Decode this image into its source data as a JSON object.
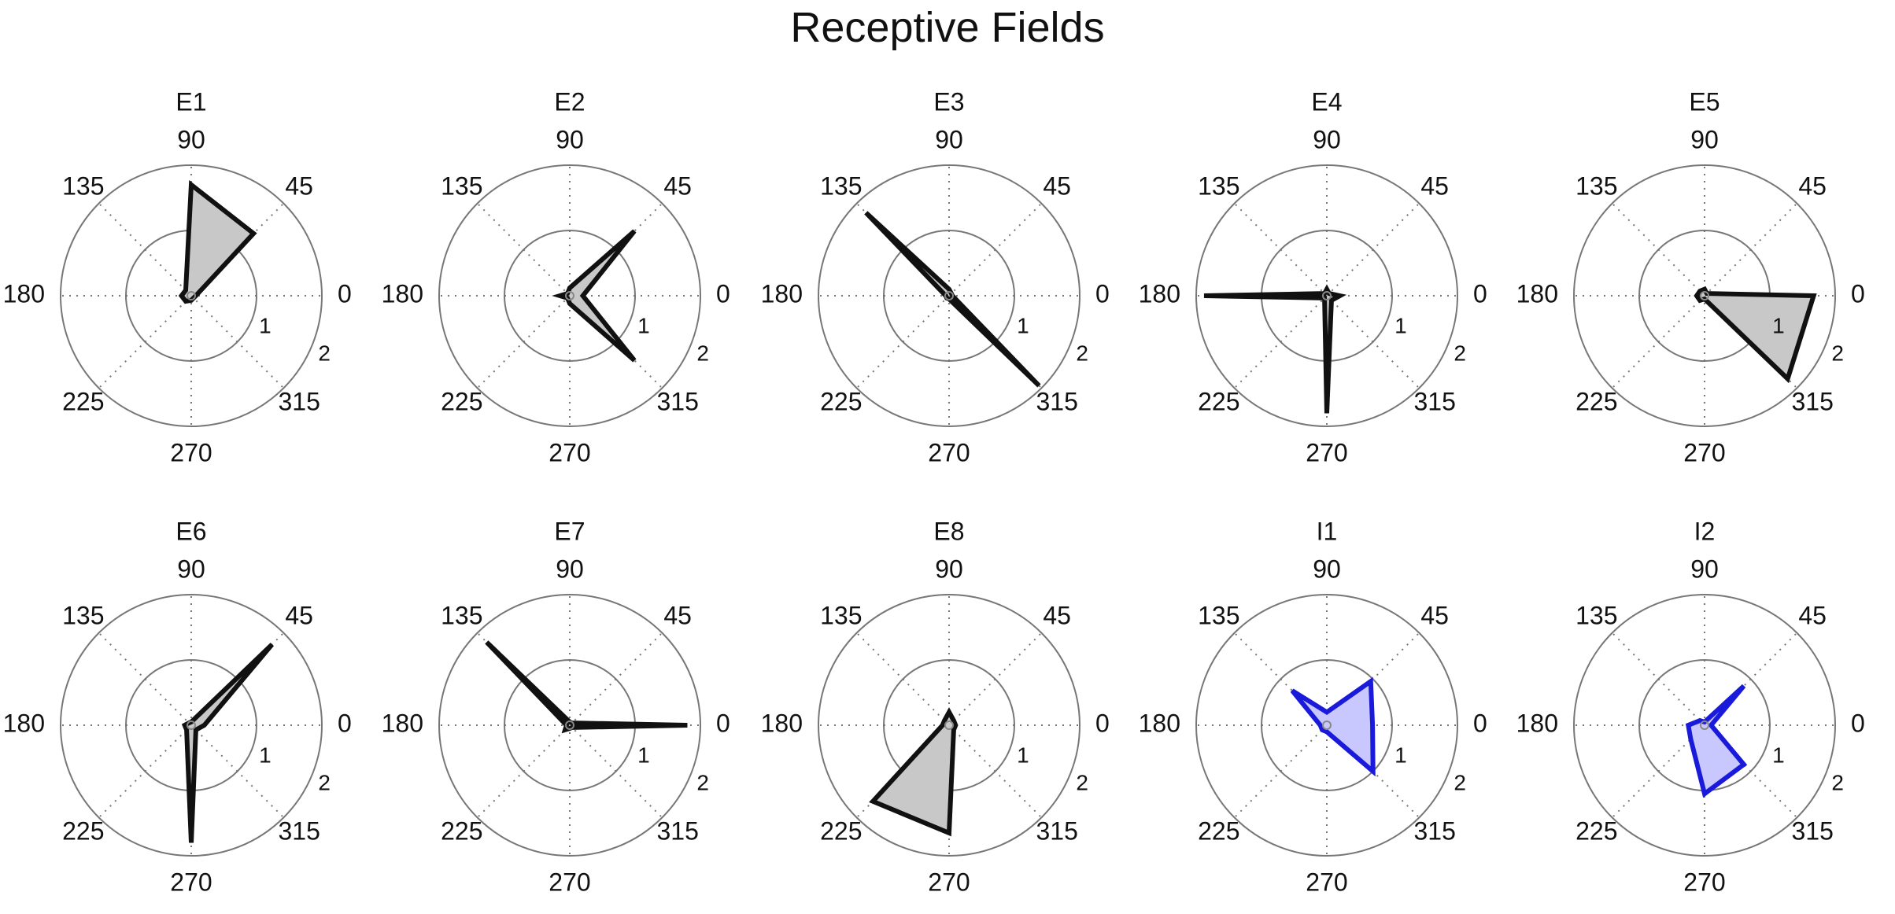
{
  "title": "Receptive Fields",
  "chart_data": {
    "type": "polar",
    "angle_ticks": [
      "0",
      "45",
      "90",
      "135",
      "180",
      "225",
      "270",
      "315"
    ],
    "angles_deg": [
      0,
      45,
      90,
      135,
      180,
      225,
      270,
      315
    ],
    "rings": [
      1,
      2
    ],
    "ring_labels": [
      "1",
      "2"
    ],
    "rlim": [
      0,
      2
    ],
    "grid": true,
    "colors": {
      "excitatory_line": "#111111",
      "excitatory_fill": "#c8c8c8",
      "inhibitory_line": "#1a1adb",
      "inhibitory_fill": "#c8c8ff",
      "grid": "#777777"
    },
    "panels": [
      {
        "name": "E1",
        "kind": "excitatory",
        "values": [
          0.07,
          1.35,
          1.7,
          0.12,
          0.15,
          0.12,
          0.07,
          0.05
        ]
      },
      {
        "name": "E2",
        "kind": "excitatory",
        "values": [
          0.2,
          1.4,
          0.12,
          0.05,
          0.15,
          0.05,
          0.12,
          1.4
        ]
      },
      {
        "name": "E3",
        "kind": "excitatory",
        "values": [
          0.05,
          0.05,
          0.1,
          1.8,
          0.05,
          0.05,
          0.05,
          1.95
        ]
      },
      {
        "name": "E4",
        "kind": "excitatory",
        "values": [
          0.2,
          0.05,
          0.1,
          0.05,
          1.88,
          0.05,
          1.8,
          0.1
        ]
      },
      {
        "name": "E5",
        "kind": "excitatory",
        "values": [
          1.67,
          0.05,
          0.1,
          0.1,
          0.12,
          0.1,
          0.05,
          1.8
        ]
      },
      {
        "name": "E6",
        "kind": "excitatory",
        "values": [
          0.2,
          1.75,
          0.05,
          0.05,
          0.1,
          0.1,
          1.8,
          0.1
        ]
      },
      {
        "name": "E7",
        "kind": "excitatory",
        "values": [
          1.8,
          0.05,
          0.05,
          1.8,
          0.05,
          0.1,
          0.05,
          0.05
        ]
      },
      {
        "name": "E8",
        "kind": "excitatory",
        "values": [
          0.1,
          0.1,
          0.2,
          0.1,
          0.1,
          1.65,
          1.65,
          0.1
        ]
      },
      {
        "name": "I1",
        "kind": "inhibitory",
        "values": [
          0.7,
          0.95,
          0.2,
          0.75,
          0.1,
          0.1,
          0.1,
          1.0
        ]
      },
      {
        "name": "I2",
        "kind": "inhibitory",
        "values": [
          0.1,
          0.85,
          0.05,
          0.1,
          0.25,
          0.3,
          1.05,
          0.85
        ]
      }
    ]
  }
}
